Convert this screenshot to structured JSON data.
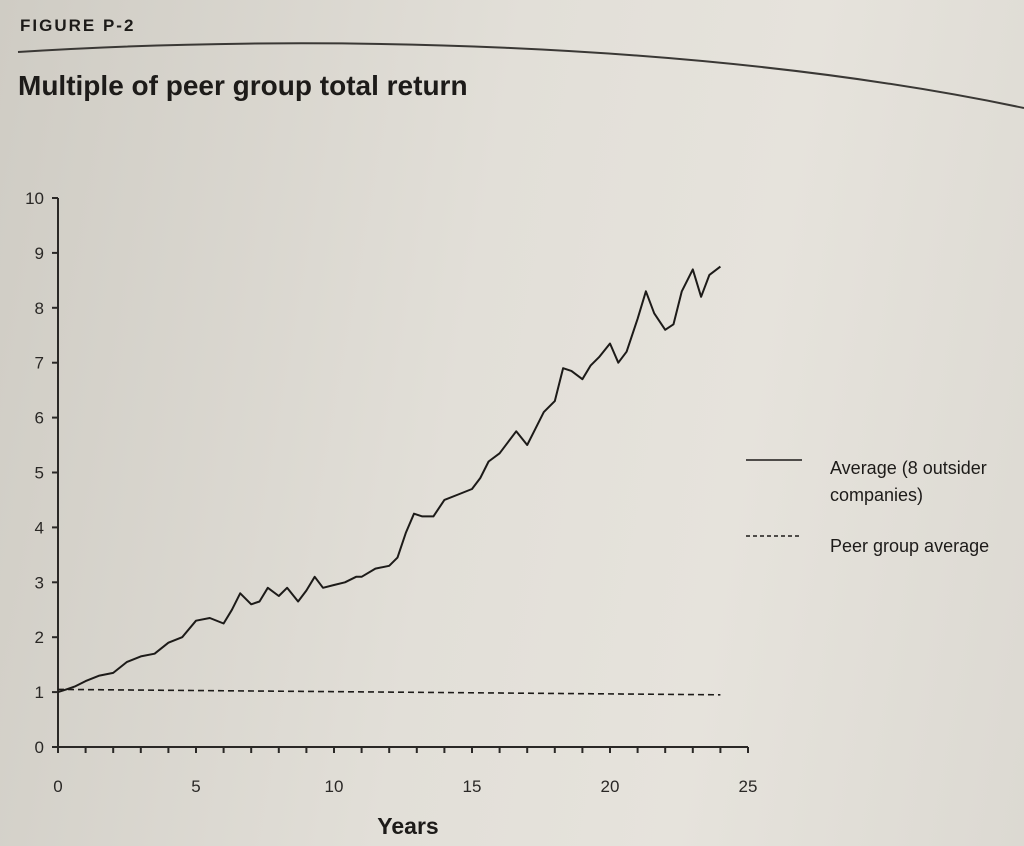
{
  "header": {
    "figure_label": "FIGURE P-2"
  },
  "chart_data": {
    "type": "line",
    "title": "Multiple of peer group total return",
    "xlabel": "Years",
    "ylabel": "",
    "xlim": [
      0,
      25
    ],
    "ylim": [
      0,
      10
    ],
    "xticks": [
      0,
      5,
      10,
      15,
      20,
      25
    ],
    "yticks": [
      0,
      1,
      2,
      3,
      4,
      5,
      6,
      7,
      8,
      9,
      10
    ],
    "grid": false,
    "legend_position": "right",
    "series": [
      {
        "name": "Average (8 outsider companies)",
        "style": "solid",
        "x": [
          0,
          0.3,
          0.6,
          1,
          1.5,
          2,
          2.5,
          3,
          3.5,
          4,
          4.5,
          5,
          5.5,
          6,
          6.3,
          6.6,
          7,
          7.3,
          7.6,
          8,
          8.3,
          8.7,
          9,
          9.3,
          9.6,
          10,
          10.4,
          10.8,
          11,
          11.5,
          12,
          12.3,
          12.6,
          12.9,
          13.2,
          13.6,
          14,
          14.5,
          15,
          15.3,
          15.6,
          16,
          16.3,
          16.6,
          17,
          17.3,
          17.6,
          18,
          18.3,
          18.6,
          19,
          19.3,
          19.6,
          20,
          20.3,
          20.6,
          21,
          21.3,
          21.6,
          22,
          22.3,
          22.6,
          23,
          23.3,
          23.6,
          24
        ],
        "y": [
          1.0,
          1.05,
          1.1,
          1.2,
          1.3,
          1.35,
          1.55,
          1.65,
          1.7,
          1.9,
          2.0,
          2.3,
          2.35,
          2.25,
          2.5,
          2.8,
          2.6,
          2.65,
          2.9,
          2.75,
          2.9,
          2.65,
          2.85,
          3.1,
          2.9,
          2.95,
          3.0,
          3.1,
          3.1,
          3.25,
          3.3,
          3.45,
          3.9,
          4.25,
          4.2,
          4.2,
          4.5,
          4.6,
          4.7,
          4.9,
          5.2,
          5.35,
          5.55,
          5.75,
          5.5,
          5.8,
          6.1,
          6.3,
          6.9,
          6.85,
          6.7,
          6.95,
          7.1,
          7.35,
          7.0,
          7.2,
          7.8,
          8.3,
          7.9,
          7.6,
          7.7,
          8.3,
          8.7,
          8.2,
          8.6,
          8.75
        ]
      },
      {
        "name": "Peer group average",
        "style": "dashed",
        "x": [
          0,
          24
        ],
        "y": [
          1.05,
          0.95
        ]
      }
    ]
  }
}
